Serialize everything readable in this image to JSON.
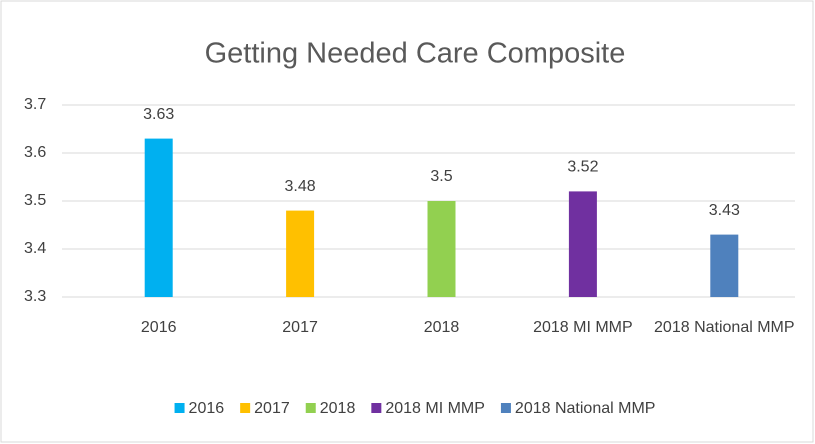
{
  "chart_data": {
    "type": "bar",
    "title": "Getting Needed Care Composite",
    "categories": [
      "2016",
      "2017",
      "2018",
      "2018 MI MMP",
      "2018 National MMP"
    ],
    "values": [
      3.63,
      3.48,
      3.5,
      3.52,
      3.43
    ],
    "colors": [
      "#00b0f0",
      "#ffc000",
      "#92d050",
      "#7030a0",
      "#4f81bd"
    ],
    "ylim": [
      3.3,
      3.7
    ],
    "yticks": [
      3.3,
      3.4,
      3.5,
      3.6,
      3.7
    ],
    "grid": true,
    "legend": "bottom"
  }
}
